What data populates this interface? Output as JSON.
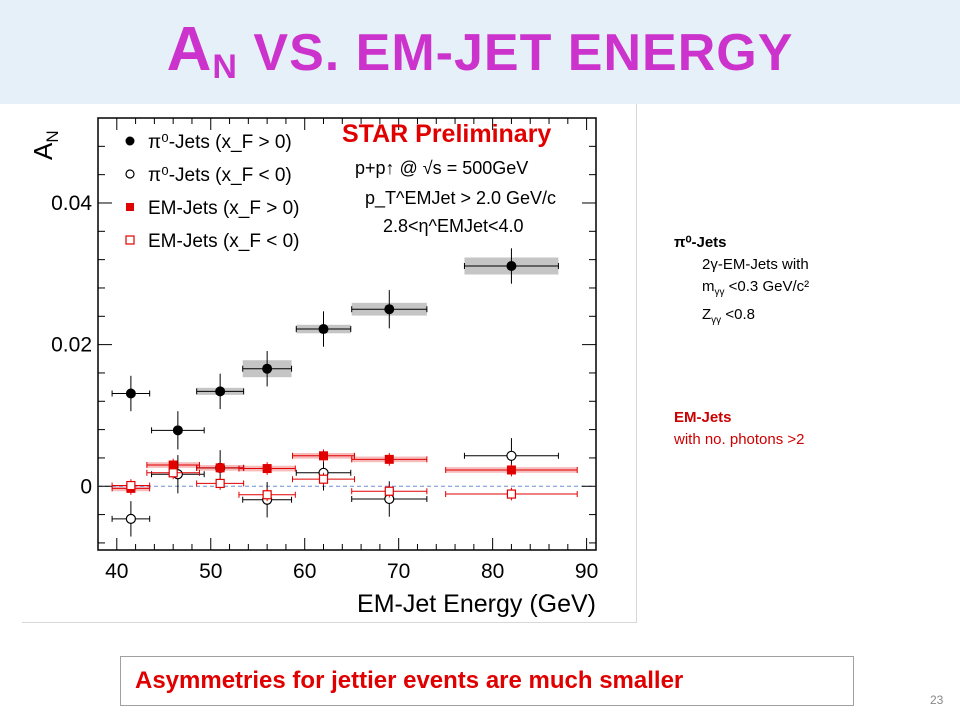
{
  "slide": {
    "title_a": "A",
    "title_n": "N",
    "title_rest": " VS. EM-JET ENERGY",
    "page_number": "23",
    "conclusion": "Asymmetries for jettier events are much smaller"
  },
  "notes": {
    "pi0_head": "π⁰-Jets",
    "pi0_line1": "2γ-EM-Jets  with",
    "pi0_line2_a": "m",
    "pi0_line2_sub": "γγ",
    "pi0_line2_b": " <0.3 GeV/c²",
    "pi0_line3_a": "Z",
    "pi0_line3_sub": "γγ",
    "pi0_line3_b": " <0.8",
    "em_head": "EM-Jets",
    "em_line1": "with no. photons >2"
  },
  "colors": {
    "title": "#cc33cc",
    "star": "#e00000",
    "em_series": "#e00000",
    "pi0_series": "#000000",
    "band": "#e6f0f8"
  },
  "chart_data": {
    "type": "scatter",
    "title": "STAR Preliminary",
    "annotations": [
      "p+p↑ @ √s = 500GeV",
      "p_T^EMJet > 2.0 GeV/c",
      "2.8<η^EMJet<4.0"
    ],
    "xlabel": "EM-Jet Energy (GeV)",
    "ylabel": "A_N",
    "xlim": [
      38,
      91
    ],
    "ylim": [
      -0.009,
      0.052
    ],
    "x_ticks": [
      40,
      50,
      60,
      70,
      80,
      90
    ],
    "y_ticks": [
      0,
      0.02,
      0.04
    ],
    "y_tick_labels": [
      "0",
      "0.02",
      "0.04"
    ],
    "legend_position": "top-left",
    "series": [
      {
        "name": "π⁰-Jets (x_F > 0)",
        "marker": "filled-circle",
        "color": "#000000",
        "x": [
          41.5,
          46.5,
          51,
          56,
          62,
          69,
          82
        ],
        "y": [
          0.0131,
          0.0079,
          0.0134,
          0.0166,
          0.0222,
          0.025,
          0.0311
        ],
        "yerr": [
          0.0025,
          0.0027,
          0.0025,
          0.0025,
          0.0025,
          0.0027,
          0.0025
        ],
        "xerr": [
          2,
          2.8,
          2.5,
          2.6,
          2.9,
          4,
          5
        ],
        "syserr": [
          0,
          0,
          0.0005,
          0.0012,
          0.0006,
          0.0009,
          0.0012
        ]
      },
      {
        "name": "π⁰-Jets (x_F < 0)",
        "marker": "open-circle",
        "color": "#000000",
        "x": [
          41.5,
          46.5,
          51,
          56,
          62,
          69,
          82
        ],
        "y": [
          -0.0046,
          0.0017,
          0.0026,
          -0.0019,
          0.0019,
          -0.0018,
          0.0043
        ],
        "yerr": [
          0.0025,
          0.0027,
          0.0025,
          0.0025,
          0.0025,
          0.0025,
          0.0025
        ],
        "xerr": [
          2,
          2.8,
          2.5,
          2.6,
          2.9,
          4,
          5
        ],
        "syserr": [
          0,
          0,
          0,
          0,
          0,
          0,
          0
        ]
      },
      {
        "name": "EM-Jets (x_F > 0)",
        "marker": "filled-square",
        "color": "#e00000",
        "x": [
          41.5,
          46,
          51,
          56,
          62,
          69,
          82
        ],
        "y": [
          -0.0003,
          0.003,
          0.0026,
          0.0025,
          0.0043,
          0.0038,
          0.0023
        ],
        "yerr": [
          0.0009,
          0.0009,
          0.0009,
          0.0009,
          0.0009,
          0.0009,
          0.0009
        ],
        "xerr": [
          2,
          2.8,
          2.5,
          3,
          3.3,
          4,
          7
        ],
        "syserr": [
          0.0004,
          0.0004,
          0.0004,
          0.0004,
          0.0004,
          0.0004,
          0.0004
        ]
      },
      {
        "name": "EM-Jets (x_F < 0)",
        "marker": "open-square",
        "color": "#e00000",
        "x": [
          41.5,
          46,
          51,
          56,
          62,
          69,
          82
        ],
        "y": [
          0.0001,
          0.0019,
          0.0004,
          -0.0012,
          0.001,
          -0.0007,
          -0.0011
        ],
        "yerr": [
          0.0009,
          0.0009,
          0.0009,
          0.0009,
          0.0009,
          0.0009,
          0.0009
        ],
        "xerr": [
          2,
          2.8,
          2.5,
          3,
          3.3,
          4,
          7
        ],
        "syserr": [
          0,
          0,
          0,
          0,
          0,
          0,
          0
        ]
      }
    ]
  }
}
